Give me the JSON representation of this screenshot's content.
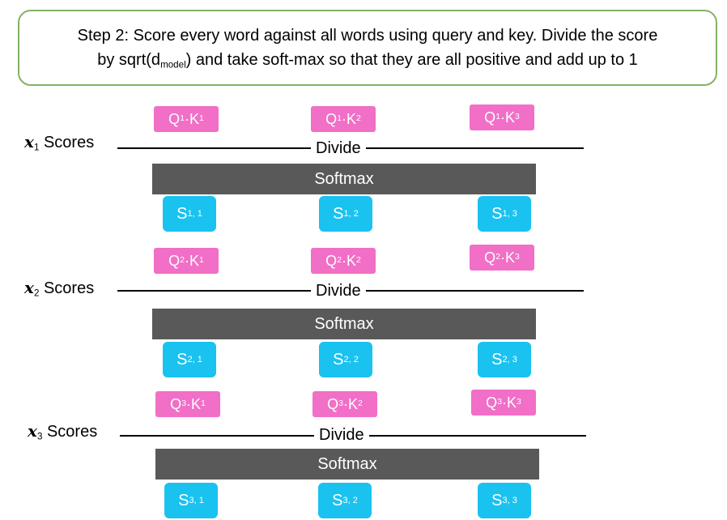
{
  "header": {
    "line1": "Step 2: Score every word against all words using query and key. Divide the score",
    "line2_prefix": "by sqrt(d",
    "line2_sub": "model",
    "line2_suffix": ") and take soft-max so that they are all positive and add up to 1"
  },
  "divide_label": "Divide",
  "softmax_label": "Softmax",
  "rows": [
    {
      "x_symbol": "x",
      "x_index": "1",
      "label": "Scores",
      "products": [
        {
          "q": "Q",
          "qi": "1",
          "dot": "· ",
          "k": "K",
          "ki": "1"
        },
        {
          "q": "Q",
          "qi": "1",
          "dot": "· ",
          "k": "K",
          "ki": "2"
        },
        {
          "q": "Q",
          "qi": "1",
          "dot": "· ",
          "k": "K",
          "ki": "3"
        }
      ],
      "scores": [
        {
          "s": "S",
          "idx": "1, 1"
        },
        {
          "s": "S",
          "idx": "1, 2"
        },
        {
          "s": "S",
          "idx": "1, 3"
        }
      ]
    },
    {
      "x_symbol": "x",
      "x_index": "2",
      "label": "Scores",
      "products": [
        {
          "q": "Q",
          "qi": "2",
          "dot": "· ",
          "k": "K",
          "ki": "1"
        },
        {
          "q": "Q",
          "qi": "2",
          "dot": "· ",
          "k": "K",
          "ki": "2"
        },
        {
          "q": "Q",
          "qi": "2",
          "dot": "· ",
          "k": "K",
          "ki": "3"
        }
      ],
      "scores": [
        {
          "s": "S",
          "idx": "2, 1"
        },
        {
          "s": "S",
          "idx": "2, 2"
        },
        {
          "s": "S",
          "idx": "2, 3"
        }
      ]
    },
    {
      "x_symbol": "x",
      "x_index": "3",
      "label": "Scores",
      "products": [
        {
          "q": "Q",
          "qi": "3",
          "dot": "· ",
          "k": "K",
          "ki": "1"
        },
        {
          "q": "Q",
          "qi": "3",
          "dot": "· ",
          "k": "K",
          "ki": "2"
        },
        {
          "q": "Q",
          "qi": "3",
          "dot": "· ",
          "k": "K",
          "ki": "3"
        }
      ],
      "scores": [
        {
          "s": "S",
          "idx": "3, 1"
        },
        {
          "s": "S",
          "idx": "3, 2"
        },
        {
          "s": "S",
          "idx": "3, 3"
        }
      ]
    }
  ]
}
